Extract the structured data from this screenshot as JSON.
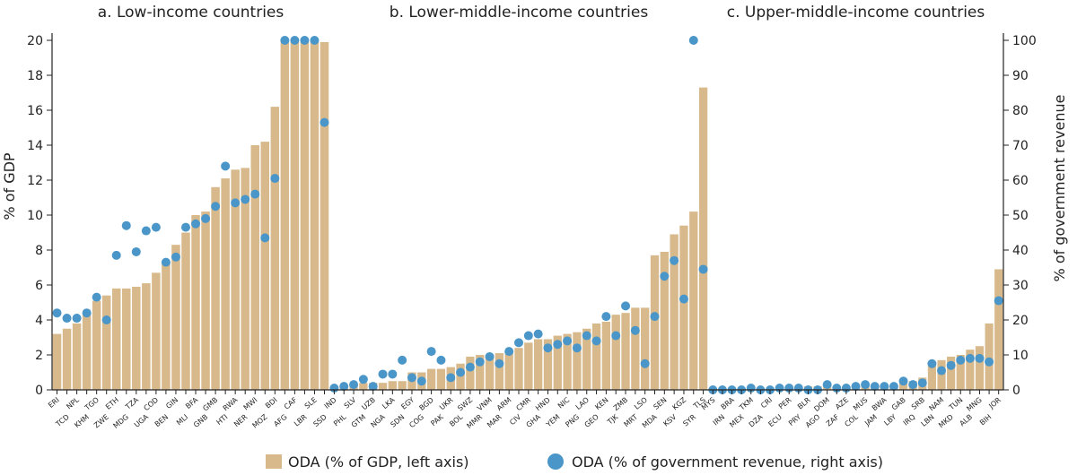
{
  "chart_data": {
    "type": "bar",
    "colors": {
      "bar": "#d8b98c",
      "dot": "#4a96c8",
      "axis": "#222222",
      "text": "#222222"
    },
    "left_axis": {
      "label": "% of GDP",
      "ylim": [
        0,
        20
      ],
      "ticks": [
        "0",
        "2",
        "4",
        "6",
        "8",
        "10",
        "12",
        "14",
        "16",
        "18",
        "20"
      ]
    },
    "right_axis": {
      "label": "% of government revenue",
      "ylim": [
        0,
        100
      ],
      "ticks": [
        "0",
        "10",
        "20",
        "30",
        "40",
        "50",
        "60",
        "70",
        "80",
        "90",
        "100"
      ]
    },
    "legend": [
      {
        "label": "ODA (% of GDP, left axis)",
        "marker": "bar"
      },
      {
        "label": "ODA (% of government revenue, right axis)",
        "marker": "dot"
      }
    ],
    "panels": [
      {
        "title": "a. Low-income countries",
        "categories": [
          "ERI",
          "TCD",
          "NPL",
          "KHM",
          "TGO",
          "ZWE",
          "ETH",
          "MDG",
          "TZA",
          "UGA",
          "COD",
          "BEN",
          "GIN",
          "MLI",
          "BFA",
          "GNB",
          "GMB",
          "HTI",
          "RWA",
          "NER",
          "MWI",
          "MOZ",
          "BDI",
          "AFG",
          "CAF",
          "LBR",
          "SLE",
          "SSD"
        ],
        "series": [
          {
            "name": "ODA (% of GDP, left axis)",
            "axis": "left",
            "values": [
              3.2,
              3.5,
              3.8,
              4.3,
              5.1,
              5.4,
              5.8,
              5.8,
              5.9,
              6.1,
              6.7,
              7.3,
              8.3,
              9.0,
              10.0,
              10.2,
              11.6,
              12.1,
              12.6,
              12.7,
              14.0,
              14.2,
              16.2,
              19.9,
              19.9,
              19.9,
              19.9,
              19.9
            ]
          },
          {
            "name": "ODA (% of government revenue, right axis)",
            "axis": "right",
            "values": [
              22,
              20.5,
              20.5,
              22,
              26.5,
              20,
              38.5,
              47,
              39.5,
              45.5,
              46.5,
              36.5,
              38,
              46.5,
              47.5,
              49,
              52.5,
              64,
              53.5,
              54.5,
              56,
              43.5,
              60.5,
              100,
              100,
              100,
              100,
              76.5
            ]
          }
        ]
      },
      {
        "title": "b. Lower-middle-income countries",
        "categories": [
          "IND",
          "PHL",
          "SLV",
          "GTM",
          "UZB",
          "NGA",
          "LKA",
          "SDN",
          "EGY",
          "COG",
          "BGD",
          "PAK",
          "UKR",
          "BOL",
          "SWZ",
          "MMR",
          "VNM",
          "MAR",
          "ARM",
          "CIV",
          "CMR",
          "GHA",
          "HND",
          "YEM",
          "NIC",
          "PNG",
          "LAO",
          "GEO",
          "KEN",
          "TJK",
          "ZMB",
          "MRT",
          "LSO",
          "MDA",
          "SEN",
          "KSV",
          "KGZ",
          "SYR",
          "TLS"
        ],
        "series": [
          {
            "name": "ODA (% of GDP, left axis)",
            "axis": "left",
            "values": [
              0.1,
              0.2,
              0.3,
              0.4,
              0.4,
              0.4,
              0.5,
              0.5,
              1.0,
              1.0,
              1.2,
              1.2,
              1.3,
              1.5,
              1.9,
              2.0,
              2.0,
              2.1,
              2.1,
              2.4,
              2.7,
              2.9,
              2.9,
              3.1,
              3.2,
              3.3,
              3.5,
              3.8,
              3.9,
              4.3,
              4.4,
              4.7,
              4.7,
              7.7,
              7.9,
              8.9,
              9.4,
              10.2,
              17.3
            ]
          },
          {
            "name": "ODA (% of government revenue, right axis)",
            "axis": "right",
            "values": [
              0.5,
              1,
              1.5,
              3,
              1,
              4.5,
              4.5,
              8.5,
              3.5,
              2.5,
              11,
              8.5,
              3.5,
              5,
              6.5,
              8,
              9.5,
              7.5,
              11,
              13.5,
              15.5,
              16,
              12,
              13,
              14,
              12,
              15.5,
              14,
              21,
              15.5,
              24,
              17,
              7.5,
              21,
              32.5,
              37,
              26,
              100,
              34.5
            ]
          }
        ]
      },
      {
        "title": "c. Upper-middle-income countries",
        "categories": [
          "MYS",
          "IRN",
          "BRA",
          "MEX",
          "TKM",
          "DZA",
          "CRI",
          "ECU",
          "PER",
          "PRY",
          "BLR",
          "AGO",
          "DOM",
          "ZAF",
          "AZE",
          "COL",
          "MUS",
          "JAM",
          "BWA",
          "LBY",
          "GAB",
          "IRQ",
          "SRB",
          "LBN",
          "NAM",
          "MKD",
          "TUN",
          "ALB",
          "MNG",
          "BIH",
          "JOR"
        ],
        "series": [
          {
            "name": "ODA (% of GDP, left axis)",
            "axis": "left",
            "values": [
              0.05,
              0.05,
              0.05,
              0.05,
              0.1,
              0.1,
              0.1,
              0.1,
              0.15,
              0.15,
              0.2,
              0.2,
              0.2,
              0.2,
              0.2,
              0.3,
              0.3,
              0.3,
              0.3,
              0.3,
              0.4,
              0.5,
              0.7,
              1.4,
              1.7,
              1.9,
              2.0,
              2.3,
              2.5,
              3.8,
              6.9
            ]
          },
          {
            "name": "ODA (% of government revenue, right axis)",
            "axis": "right",
            "values": [
              0,
              0,
              0,
              0,
              0.5,
              0,
              0,
              0.5,
              0.5,
              0.5,
              0,
              0,
              1.5,
              0.5,
              0.5,
              1,
              1.5,
              1,
              1,
              1,
              2.5,
              1.5,
              2,
              7.5,
              5.5,
              7,
              8.5,
              9,
              9,
              8,
              25.5
            ]
          }
        ]
      }
    ]
  }
}
